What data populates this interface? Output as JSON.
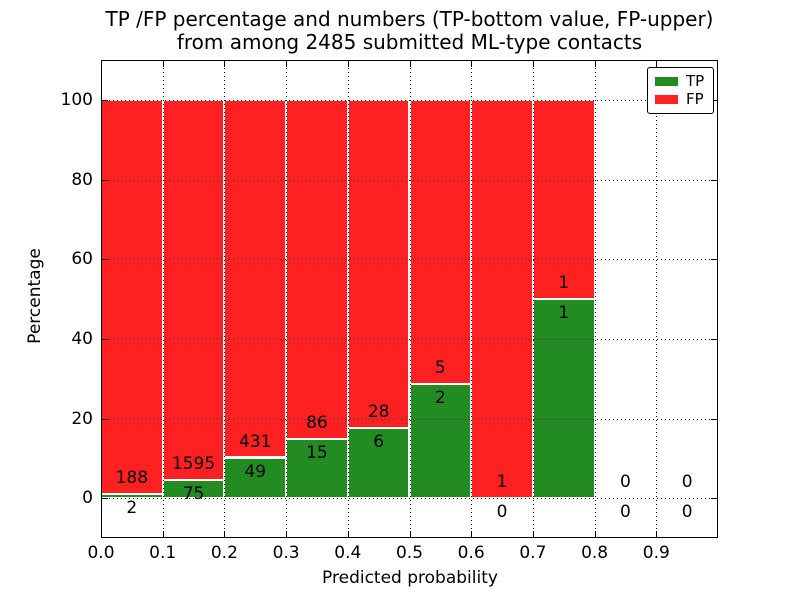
{
  "figure": {
    "title_line1": "TP /FP percentage and numbers (TP-bottom value, FP-upper)",
    "title_line2": "from among 2485 submitted ML-type contacts",
    "xlabel": "Predicted probability",
    "ylabel": "Percentage"
  },
  "legend": {
    "position": "upper right",
    "items": [
      {
        "label": "TP",
        "color": "#228b22"
      },
      {
        "label": "FP",
        "color": "#ff2121"
      }
    ]
  },
  "chart_data": {
    "type": "bar",
    "stacked": true,
    "normalized_to_percent": true,
    "title": "TP /FP percentage and numbers (TP-bottom value, FP-upper) from among 2485 submitted ML-type contacts",
    "xlabel": "Predicted probability",
    "ylabel": "Percentage",
    "total_contacts": 2485,
    "xlim": [
      0.0,
      1.0
    ],
    "ylim": [
      -10,
      110
    ],
    "grid": "dotted-both-axes-on-top",
    "xticks": [
      0.0,
      0.1,
      0.2,
      0.3,
      0.4,
      0.5,
      0.6,
      0.7,
      0.8,
      0.9
    ],
    "xtick_labels": [
      "0.0",
      "0.1",
      "0.2",
      "0.3",
      "0.4",
      "0.5",
      "0.6",
      "0.7",
      "0.8",
      "0.9"
    ],
    "yticks": [
      0,
      20,
      40,
      60,
      80,
      100
    ],
    "ytick_labels": [
      "0",
      "20",
      "40",
      "60",
      "80",
      "100"
    ],
    "series": [
      {
        "name": "TP",
        "color": "#228b22"
      },
      {
        "name": "FP",
        "color": "#ff2121"
      }
    ],
    "bar_edge_color": "#ffffff",
    "bins": [
      {
        "x0": 0.0,
        "x1": 0.1,
        "tp": 2,
        "fp": 188,
        "tp_pct": 1.05,
        "fp_pct": 98.95
      },
      {
        "x0": 0.1,
        "x1": 0.2,
        "tp": 75,
        "fp": 1595,
        "tp_pct": 4.49,
        "fp_pct": 95.51
      },
      {
        "x0": 0.2,
        "x1": 0.3,
        "tp": 49,
        "fp": 431,
        "tp_pct": 10.21,
        "fp_pct": 89.79
      },
      {
        "x0": 0.3,
        "x1": 0.4,
        "tp": 15,
        "fp": 86,
        "tp_pct": 14.85,
        "fp_pct": 85.15
      },
      {
        "x0": 0.4,
        "x1": 0.5,
        "tp": 6,
        "fp": 28,
        "tp_pct": 17.65,
        "fp_pct": 82.35
      },
      {
        "x0": 0.5,
        "x1": 0.6,
        "tp": 2,
        "fp": 5,
        "tp_pct": 28.57,
        "fp_pct": 71.43
      },
      {
        "x0": 0.6,
        "x1": 0.7,
        "tp": 0,
        "fp": 1,
        "tp_pct": 0.0,
        "fp_pct": 100.0
      },
      {
        "x0": 0.7,
        "x1": 0.8,
        "tp": 1,
        "fp": 1,
        "tp_pct": 50.0,
        "fp_pct": 50.0
      },
      {
        "x0": 0.8,
        "x1": 0.9,
        "tp": 0,
        "fp": 0,
        "tp_pct": null,
        "fp_pct": null
      },
      {
        "x0": 0.9,
        "x1": 1.0,
        "tp": 0,
        "fp": 0,
        "tp_pct": null,
        "fp_pct": null
      }
    ]
  }
}
